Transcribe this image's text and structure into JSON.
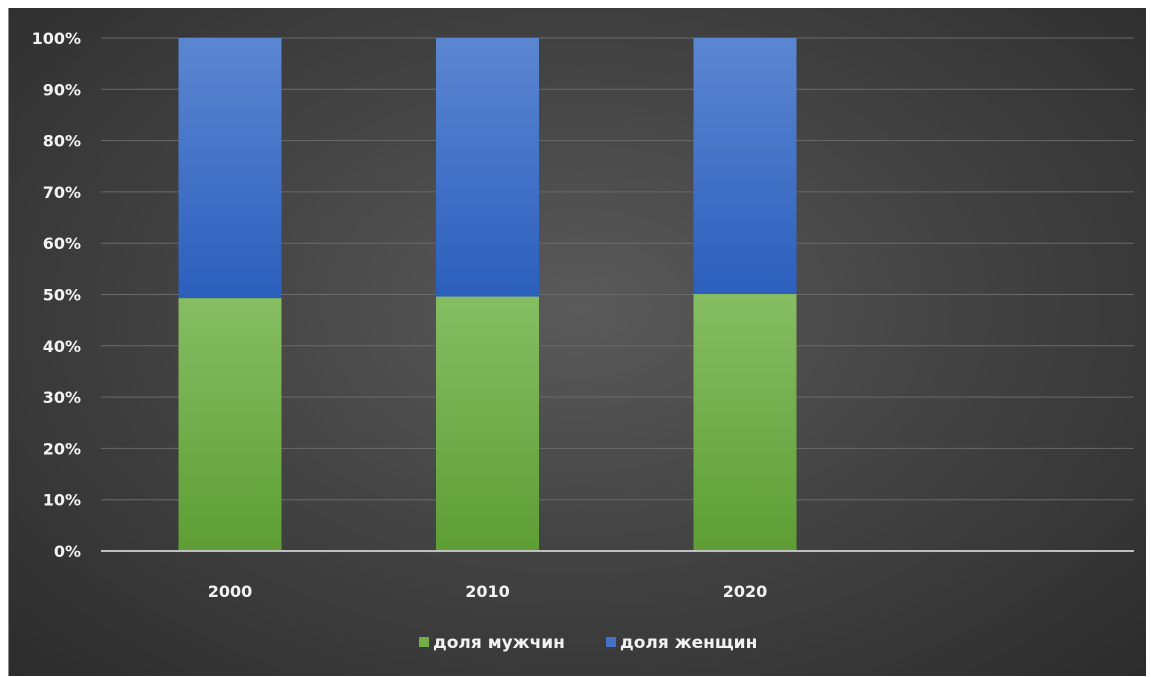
{
  "chart_data": {
    "type": "bar",
    "stacked": true,
    "percent_stacked": true,
    "categories": [
      "2000",
      "2010",
      "2020"
    ],
    "series": [
      {
        "name": "доля мужчин",
        "color": "#70ad47",
        "values": [
          49.3,
          49.6,
          50.1
        ]
      },
      {
        "name": "доля женщин",
        "color": "#4472c4",
        "values": [
          50.7,
          50.4,
          49.9
        ]
      }
    ],
    "y_ticks": [
      "0%",
      "10%",
      "20%",
      "30%",
      "40%",
      "50%",
      "60%",
      "70%",
      "80%",
      "90%",
      "100%"
    ],
    "ylim": [
      0,
      100
    ],
    "grid": true,
    "legend_position": "bottom"
  }
}
